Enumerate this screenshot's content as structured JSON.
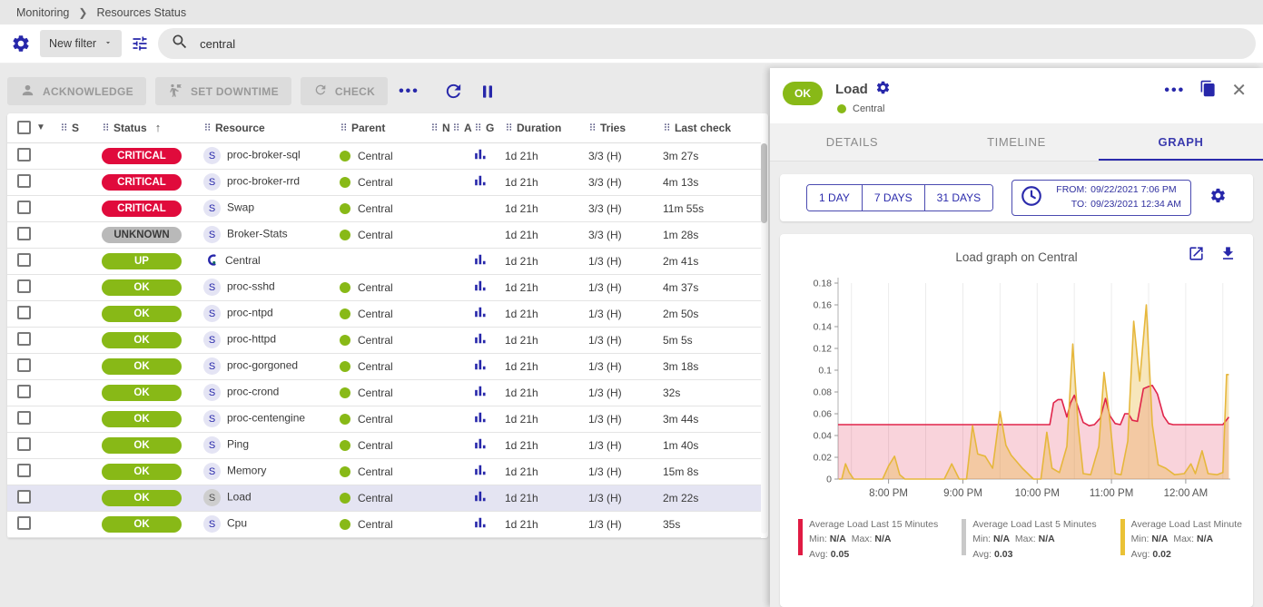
{
  "breadcrumb": {
    "items": [
      "Monitoring",
      "Resources Status"
    ]
  },
  "filter_bar": {
    "new_filter_label": "New filter",
    "search_value": "central"
  },
  "toolbar": {
    "acknowledge": "ACKNOWLEDGE",
    "set_downtime": "SET DOWNTIME",
    "check": "CHECK",
    "more": "•••"
  },
  "table": {
    "columns": [
      {
        "label": "S"
      },
      {
        "label": "Status",
        "sorted": "asc"
      },
      {
        "label": "Resource"
      },
      {
        "label": "Parent"
      },
      {
        "label": "N"
      },
      {
        "label": "A"
      },
      {
        "label": "G"
      },
      {
        "label": "Duration"
      },
      {
        "label": "Tries"
      },
      {
        "label": "Last check"
      }
    ],
    "rows": [
      {
        "status": "CRITICAL",
        "kind": "critical",
        "type": "service",
        "resource": "proc-broker-sql",
        "parent": "Central",
        "graph": true,
        "duration": "1d 21h",
        "tries": "3/3 (H)",
        "last_check": "3m 27s",
        "selected": false
      },
      {
        "status": "CRITICAL",
        "kind": "critical",
        "type": "service",
        "resource": "proc-broker-rrd",
        "parent": "Central",
        "graph": true,
        "duration": "1d 21h",
        "tries": "3/3 (H)",
        "last_check": "4m 13s",
        "selected": false
      },
      {
        "status": "CRITICAL",
        "kind": "critical",
        "type": "service",
        "resource": "Swap",
        "parent": "Central",
        "graph": false,
        "duration": "1d 21h",
        "tries": "3/3 (H)",
        "last_check": "11m 55s",
        "selected": false
      },
      {
        "status": "UNKNOWN",
        "kind": "unknown",
        "type": "service",
        "resource": "Broker-Stats",
        "parent": "Central",
        "graph": false,
        "duration": "1d 21h",
        "tries": "3/3 (H)",
        "last_check": "1m 28s",
        "selected": false
      },
      {
        "status": "UP",
        "kind": "up",
        "type": "host",
        "resource": "Central",
        "parent": "",
        "graph": true,
        "duration": "1d 21h",
        "tries": "1/3 (H)",
        "last_check": "2m 41s",
        "selected": false
      },
      {
        "status": "OK",
        "kind": "ok",
        "type": "service",
        "resource": "proc-sshd",
        "parent": "Central",
        "graph": true,
        "duration": "1d 21h",
        "tries": "1/3 (H)",
        "last_check": "4m 37s",
        "selected": false
      },
      {
        "status": "OK",
        "kind": "ok",
        "type": "service",
        "resource": "proc-ntpd",
        "parent": "Central",
        "graph": true,
        "duration": "1d 21h",
        "tries": "1/3 (H)",
        "last_check": "2m 50s",
        "selected": false
      },
      {
        "status": "OK",
        "kind": "ok",
        "type": "service",
        "resource": "proc-httpd",
        "parent": "Central",
        "graph": true,
        "duration": "1d 21h",
        "tries": "1/3 (H)",
        "last_check": "5m 5s",
        "selected": false
      },
      {
        "status": "OK",
        "kind": "ok",
        "type": "service",
        "resource": "proc-gorgoned",
        "parent": "Central",
        "graph": true,
        "duration": "1d 21h",
        "tries": "1/3 (H)",
        "last_check": "3m 18s",
        "selected": false
      },
      {
        "status": "OK",
        "kind": "ok",
        "type": "service",
        "resource": "proc-crond",
        "parent": "Central",
        "graph": true,
        "duration": "1d 21h",
        "tries": "1/3 (H)",
        "last_check": "32s",
        "selected": false
      },
      {
        "status": "OK",
        "kind": "ok",
        "type": "service",
        "resource": "proc-centengine",
        "parent": "Central",
        "graph": true,
        "duration": "1d 21h",
        "tries": "1/3 (H)",
        "last_check": "3m 44s",
        "selected": false
      },
      {
        "status": "OK",
        "kind": "ok",
        "type": "service",
        "resource": "Ping",
        "parent": "Central",
        "graph": true,
        "duration": "1d 21h",
        "tries": "1/3 (H)",
        "last_check": "1m 40s",
        "selected": false
      },
      {
        "status": "OK",
        "kind": "ok",
        "type": "service",
        "resource": "Memory",
        "parent": "Central",
        "graph": true,
        "duration": "1d 21h",
        "tries": "1/3 (H)",
        "last_check": "15m 8s",
        "selected": false
      },
      {
        "status": "OK",
        "kind": "ok",
        "type": "service",
        "resource": "Load",
        "parent": "Central",
        "graph": true,
        "duration": "1d 21h",
        "tries": "1/3 (H)",
        "last_check": "2m 22s",
        "selected": true
      },
      {
        "status": "OK",
        "kind": "ok",
        "type": "service",
        "resource": "Cpu",
        "parent": "Central",
        "graph": true,
        "duration": "1d 21h",
        "tries": "1/3 (H)",
        "last_check": "35s",
        "selected": false
      }
    ]
  },
  "status_colors": {
    "critical": {
      "bg": "#e00b3c",
      "fg": "#ffffff"
    },
    "unknown": {
      "bg": "#b9b9b9",
      "fg": "#3a3a3a"
    },
    "ok": {
      "bg": "#88b917",
      "fg": "#ffffff"
    },
    "up": {
      "bg": "#88b917",
      "fg": "#ffffff"
    }
  },
  "panel": {
    "status": "OK",
    "title": "Load",
    "parent": "Central",
    "more": "•••",
    "close": "✕",
    "tabs": [
      "DETAILS",
      "TIMELINE",
      "GRAPH"
    ],
    "active_tab": 2,
    "time_ranges": [
      "1 DAY",
      "7 DAYS",
      "31 DAYS"
    ],
    "from_label": "FROM:",
    "from_value": "09/22/2021 7:06 PM",
    "to_label": "TO:",
    "to_value": "09/23/2021 12:34 AM"
  },
  "chart_data": {
    "type": "area",
    "title": "Load graph on Central",
    "xlabel": "",
    "ylabel": "",
    "ylim": [
      0,
      0.18
    ],
    "x_domain": [
      19.32,
      24.6
    ],
    "grid_start": 19.5,
    "grid_step": 0.5,
    "x_ticks": [
      {
        "t": 20,
        "label": "8:00 PM"
      },
      {
        "t": 21,
        "label": "9:00 PM"
      },
      {
        "t": 22,
        "label": "10:00 PM"
      },
      {
        "t": 23,
        "label": "11:00 PM"
      },
      {
        "t": 24,
        "label": "12:00 AM"
      }
    ],
    "y_ticks": [
      {
        "v": 0.18,
        "label": "0.18"
      },
      {
        "v": 0.16,
        "label": "0.16"
      },
      {
        "v": 0.14,
        "label": "0.14"
      },
      {
        "v": 0.12,
        "label": "0.12"
      },
      {
        "v": 0.1,
        "label": "0.1"
      },
      {
        "v": 0.08,
        "label": "0.08"
      },
      {
        "v": 0.06,
        "label": "0.06"
      },
      {
        "v": 0.04,
        "label": "0.04"
      },
      {
        "v": 0.02,
        "label": "0.02"
      },
      {
        "v": 0,
        "label": "0"
      }
    ],
    "legend_labels": {
      "min": "Min:",
      "max": "Max:",
      "avg": "Avg:",
      "na": "N/A"
    },
    "series": [
      {
        "name": "Average Load Last 15 Minutes",
        "color": "#e0244a",
        "swatch": "#e01b43",
        "fill": "rgba(224,36,74,0.20)",
        "min": "N/A",
        "max": "N/A",
        "avg": "0.05",
        "visible": true,
        "points": [
          [
            19.32,
            0.05
          ],
          [
            22.17,
            0.05
          ],
          [
            22.22,
            0.07
          ],
          [
            22.28,
            0.073
          ],
          [
            22.33,
            0.073
          ],
          [
            22.4,
            0.057
          ],
          [
            22.45,
            0.07
          ],
          [
            22.5,
            0.077
          ],
          [
            22.55,
            0.066
          ],
          [
            22.62,
            0.052
          ],
          [
            22.7,
            0.049
          ],
          [
            22.77,
            0.05
          ],
          [
            22.85,
            0.056
          ],
          [
            22.92,
            0.074
          ],
          [
            22.98,
            0.058
          ],
          [
            23.05,
            0.051
          ],
          [
            23.12,
            0.05
          ],
          [
            23.18,
            0.06
          ],
          [
            23.23,
            0.06
          ],
          [
            23.28,
            0.054
          ],
          [
            23.35,
            0.053
          ],
          [
            23.43,
            0.083
          ],
          [
            23.5,
            0.085
          ],
          [
            23.55,
            0.086
          ],
          [
            23.62,
            0.078
          ],
          [
            23.7,
            0.058
          ],
          [
            23.77,
            0.051
          ],
          [
            23.83,
            0.05
          ],
          [
            24.5,
            0.05
          ],
          [
            24.58,
            0.057
          ]
        ]
      },
      {
        "name": "Average Load Last 5 Minutes",
        "color": "#c9c9c9",
        "swatch": "#c9c9c9",
        "fill": "rgba(200,200,200,0.3)",
        "min": "N/A",
        "max": "N/A",
        "avg": "0.03",
        "visible": false,
        "points": []
      },
      {
        "name": "Average Load Last Minute",
        "color": "#e6b73c",
        "swatch": "#eac236",
        "fill": "rgba(232,184,60,0.35)",
        "min": "N/A",
        "max": "N/A",
        "avg": "0.02",
        "visible": true,
        "points": [
          [
            19.33,
            0
          ],
          [
            19.37,
            0
          ],
          [
            19.42,
            0.014
          ],
          [
            19.47,
            0.006
          ],
          [
            19.53,
            0
          ],
          [
            19.92,
            0
          ],
          [
            20.0,
            0.012
          ],
          [
            20.08,
            0.021
          ],
          [
            20.15,
            0.004
          ],
          [
            20.22,
            0
          ],
          [
            20.75,
            0
          ],
          [
            20.85,
            0.014
          ],
          [
            20.95,
            0
          ],
          [
            21.05,
            0
          ],
          [
            21.13,
            0.049
          ],
          [
            21.2,
            0.023
          ],
          [
            21.3,
            0.021
          ],
          [
            21.4,
            0.01
          ],
          [
            21.5,
            0.062
          ],
          [
            21.58,
            0.031
          ],
          [
            21.65,
            0.022
          ],
          [
            21.8,
            0.01
          ],
          [
            21.95,
            0
          ],
          [
            22.05,
            0
          ],
          [
            22.13,
            0.043
          ],
          [
            22.2,
            0.01
          ],
          [
            22.3,
            0.006
          ],
          [
            22.4,
            0.03
          ],
          [
            22.48,
            0.124
          ],
          [
            22.55,
            0.05
          ],
          [
            22.62,
            0.005
          ],
          [
            22.72,
            0.004
          ],
          [
            22.83,
            0.03
          ],
          [
            22.9,
            0.098
          ],
          [
            22.97,
            0.06
          ],
          [
            23.05,
            0.005
          ],
          [
            23.13,
            0.004
          ],
          [
            23.22,
            0.035
          ],
          [
            23.3,
            0.145
          ],
          [
            23.38,
            0.09
          ],
          [
            23.47,
            0.16
          ],
          [
            23.55,
            0.05
          ],
          [
            23.63,
            0.013
          ],
          [
            23.73,
            0.01
          ],
          [
            23.85,
            0.004
          ],
          [
            23.98,
            0.005
          ],
          [
            24.07,
            0.014
          ],
          [
            24.13,
            0.005
          ],
          [
            24.22,
            0.026
          ],
          [
            24.3,
            0.005
          ],
          [
            24.42,
            0.004
          ],
          [
            24.5,
            0.006
          ],
          [
            24.55,
            0.096
          ],
          [
            24.58,
            0.096
          ]
        ]
      }
    ]
  }
}
